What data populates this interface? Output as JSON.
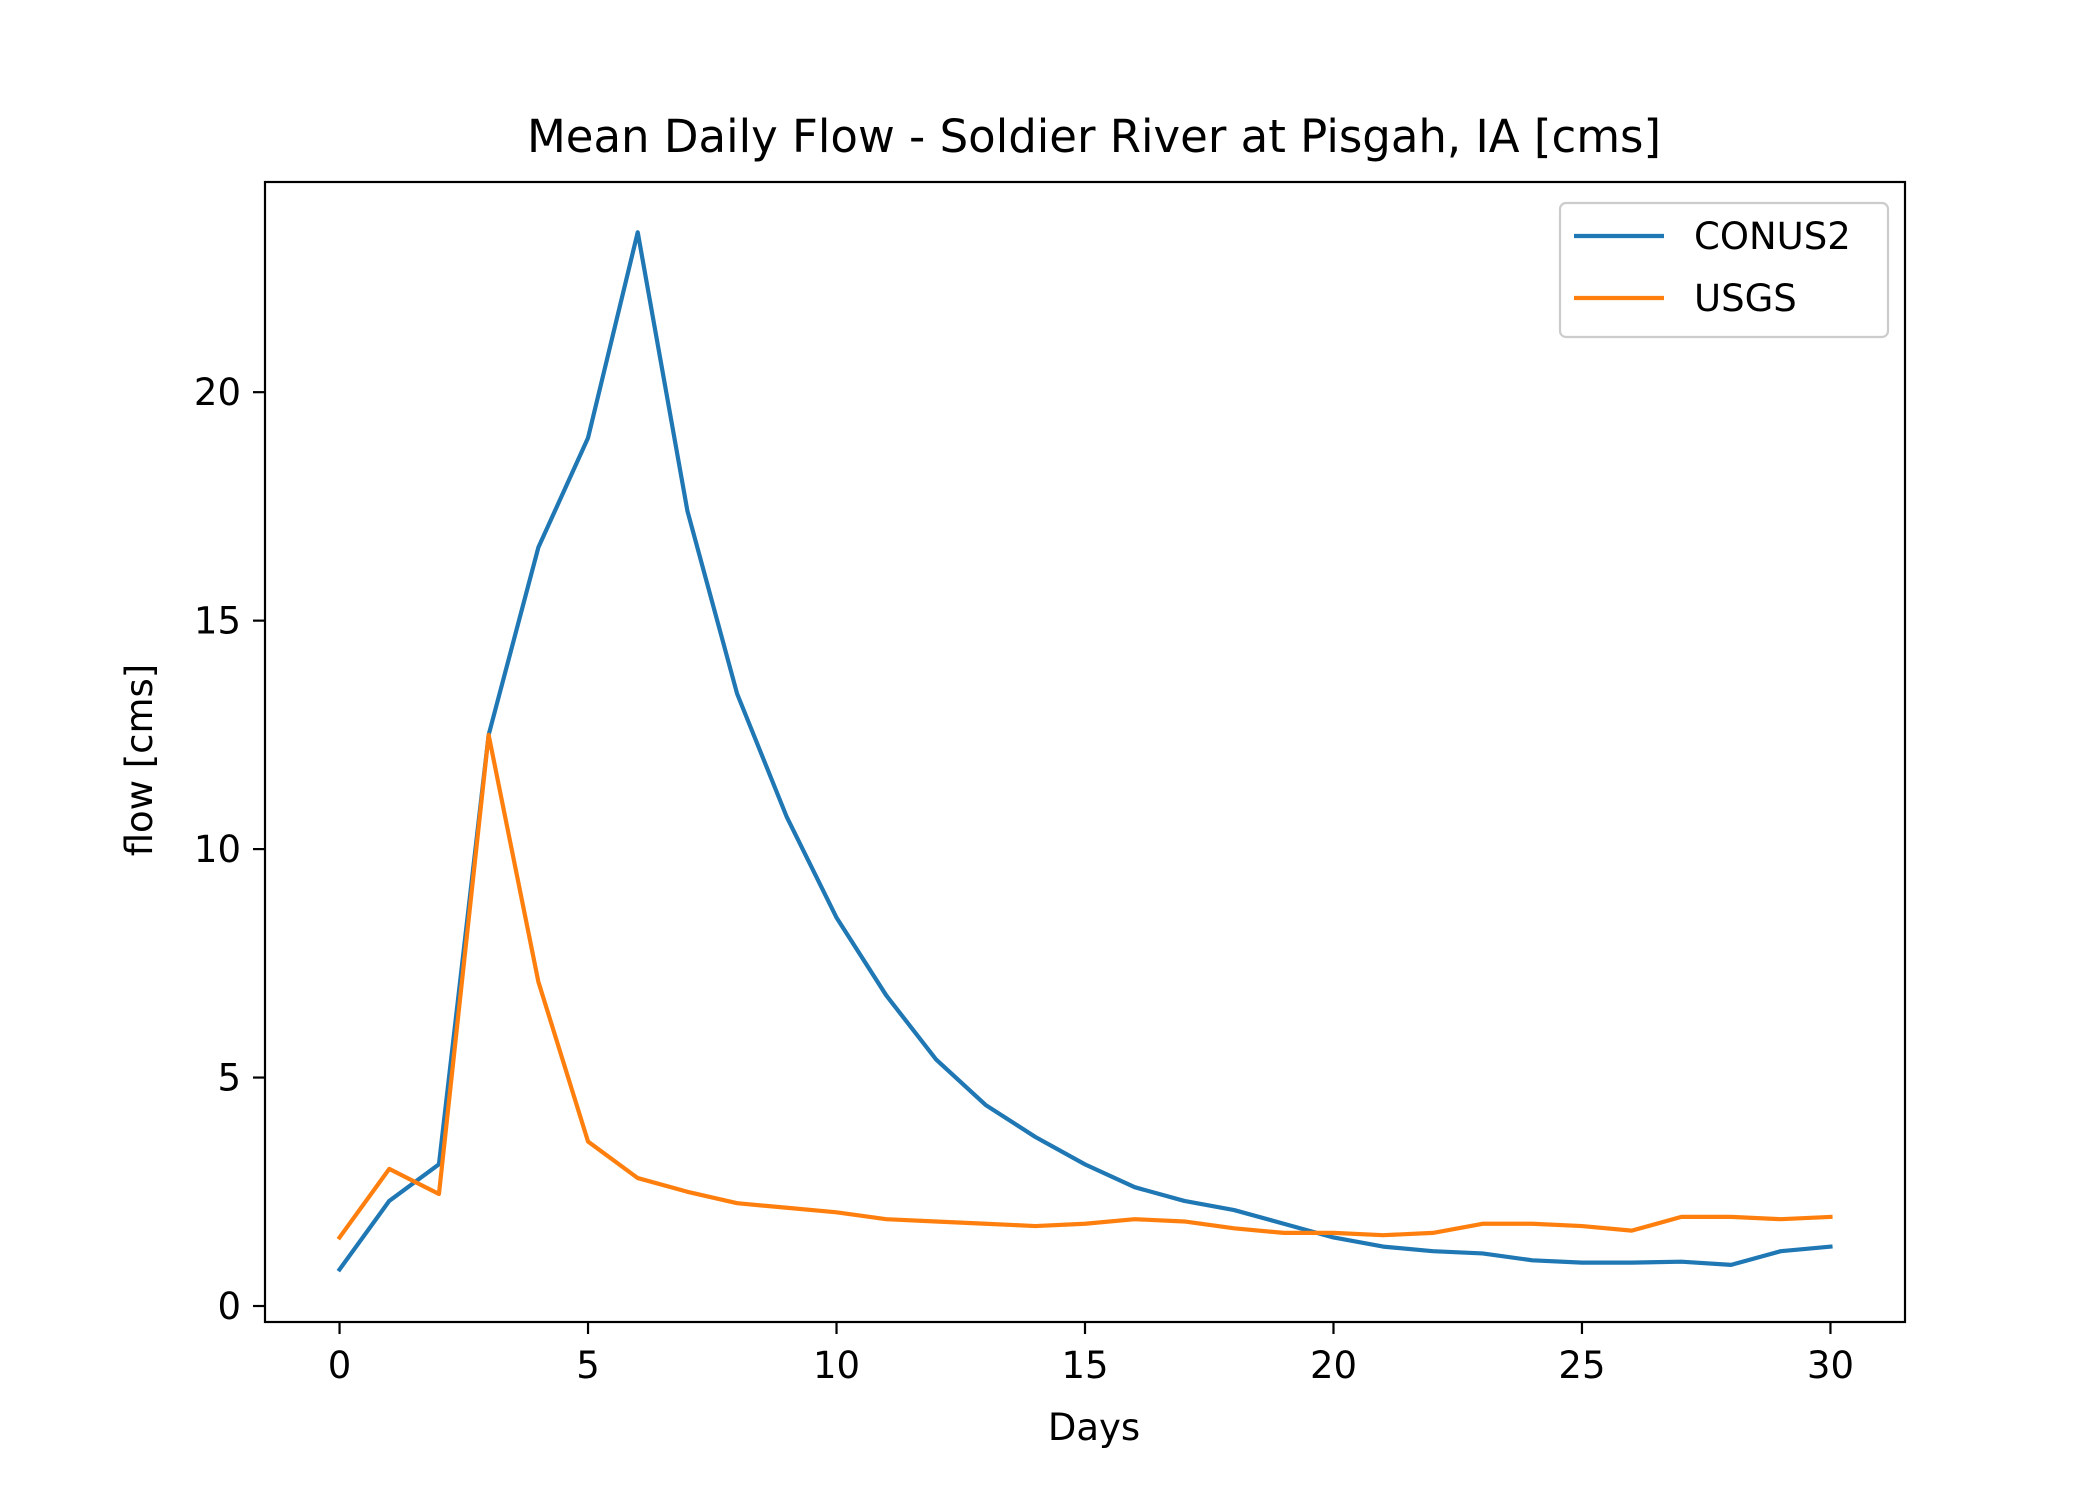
{
  "chart_data": {
    "type": "line",
    "title": "Mean Daily Flow - Soldier River at Pisgah, IA [cms]",
    "xlabel": "Days",
    "ylabel": "flow [cms]",
    "xlim": [
      -1.5,
      31.5
    ],
    "ylim": [
      -0.35,
      24.6
    ],
    "xticks": [
      0,
      5,
      10,
      15,
      20,
      25,
      30
    ],
    "yticks": [
      0,
      5,
      10,
      15,
      20
    ],
    "grid": false,
    "legend_position": "top-right",
    "x": [
      0,
      1,
      2,
      3,
      4,
      5,
      6,
      7,
      8,
      9,
      10,
      11,
      12,
      13,
      14,
      15,
      16,
      17,
      18,
      19,
      20,
      21,
      22,
      23,
      24,
      25,
      26,
      27,
      28,
      29,
      30
    ],
    "series": [
      {
        "name": "CONUS2",
        "color": "#1f77b4",
        "values": [
          0.8,
          2.3,
          3.1,
          12.5,
          16.6,
          19.0,
          23.5,
          17.4,
          13.4,
          10.7,
          8.5,
          6.8,
          5.4,
          4.4,
          3.7,
          3.1,
          2.6,
          2.3,
          2.1,
          1.8,
          1.5,
          1.3,
          1.2,
          1.15,
          1.0,
          0.95,
          0.95,
          0.97,
          0.9,
          1.2,
          1.3
        ]
      },
      {
        "name": "USGS",
        "color": "#ff7f0e",
        "values": [
          1.5,
          3.0,
          2.45,
          12.5,
          7.1,
          3.6,
          2.8,
          2.5,
          2.25,
          2.15,
          2.05,
          1.9,
          1.85,
          1.8,
          1.75,
          1.8,
          1.9,
          1.85,
          1.7,
          1.6,
          1.6,
          1.55,
          1.6,
          1.8,
          1.8,
          1.75,
          1.65,
          1.95,
          1.95,
          1.9,
          1.95
        ]
      }
    ]
  }
}
